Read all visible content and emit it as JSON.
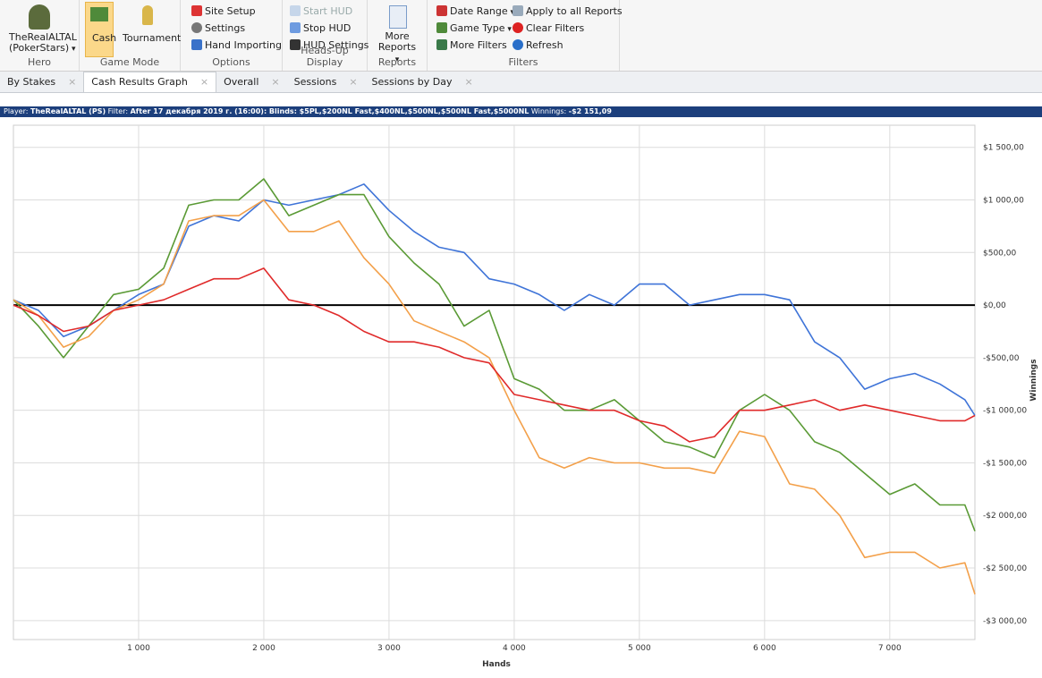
{
  "ribbon": {
    "hero": {
      "name": "TheRealALTAL",
      "site": "(PokerStars)",
      "group": "Hero"
    },
    "game_mode": {
      "buttons": [
        "Cash",
        "Tournament"
      ],
      "group": "Game Mode"
    },
    "options": {
      "buttons": [
        "Site Setup",
        "Settings",
        "Hand Importing"
      ],
      "group": "Options"
    },
    "hud": {
      "buttons": [
        "Start HUD",
        "Stop HUD",
        "HUD Settings"
      ],
      "group": "Heads-Up Display"
    },
    "reports": {
      "button": "More Reports",
      "group": "Reports"
    },
    "filters": {
      "buttons": [
        "Date Range",
        "Game Type",
        "More Filters",
        "Apply to all Reports",
        "Clear Filters",
        "Refresh"
      ],
      "group": "Filters"
    }
  },
  "tabs": [
    "By Stakes",
    "Cash Results Graph",
    "Overall",
    "Sessions",
    "Sessions by Day"
  ],
  "info_bar": {
    "player_label": "Player:",
    "player": "TheRealALTAL (PS)",
    "filter_label": "Filter:",
    "filter": "After 17 декабря 2019 г. (16:00): Blinds: $5PL,$200NL Fast,$400NL,$500NL,$500NL Fast,$5000NL",
    "winnings_label": "Winnings:",
    "winnings": "-$2 151,09"
  },
  "chart_data": {
    "type": "line",
    "x_label": "Hands",
    "y_label": "Winnings",
    "x": [
      0,
      200,
      400,
      600,
      800,
      1000,
      1200,
      1400,
      1600,
      1800,
      2000,
      2200,
      2400,
      2600,
      2800,
      3000,
      3200,
      3400,
      3600,
      3800,
      4000,
      4200,
      4400,
      4600,
      4800,
      5000,
      5200,
      5400,
      5600,
      5800,
      6000,
      6200,
      6400,
      6600,
      6800,
      7000,
      7200,
      7400,
      7600,
      7680
    ],
    "series": [
      {
        "color": "#3f74d8",
        "values": [
          50,
          -50,
          -300,
          -200,
          -50,
          100,
          200,
          750,
          850,
          800,
          1000,
          950,
          1000,
          1050,
          1150,
          900,
          700,
          550,
          500,
          250,
          200,
          100,
          -50,
          100,
          0,
          200,
          200,
          0,
          50,
          100,
          100,
          50,
          -350,
          -500,
          -800,
          -700,
          -650,
          -750,
          -900,
          -1050
        ]
      },
      {
        "color": "#5a9a35",
        "values": [
          50,
          -200,
          -500,
          -200,
          100,
          150,
          350,
          950,
          1000,
          1000,
          1200,
          850,
          950,
          1050,
          1050,
          650,
          400,
          200,
          -200,
          -50,
          -700,
          -800,
          -1000,
          -1000,
          -900,
          -1100,
          -1300,
          -1350,
          -1450,
          -1000,
          -850,
          -1000,
          -1300,
          -1400,
          -1600,
          -1800,
          -1700,
          -1900,
          -1900,
          -2150
        ]
      },
      {
        "color": "#f3a04a",
        "values": [
          50,
          -100,
          -400,
          -300,
          -50,
          50,
          200,
          800,
          850,
          850,
          1000,
          700,
          700,
          800,
          450,
          200,
          -150,
          -250,
          -350,
          -500,
          -1000,
          -1450,
          -1550,
          -1450,
          -1500,
          -1500,
          -1550,
          -1550,
          -1600,
          -1200,
          -1250,
          -1700,
          -1750,
          -2000,
          -2400,
          -2350,
          -2350,
          -2500,
          -2450,
          -2750
        ]
      },
      {
        "color": "#e02a2a",
        "values": [
          0,
          -100,
          -250,
          -200,
          -50,
          0,
          50,
          150,
          250,
          250,
          350,
          50,
          0,
          -100,
          -250,
          -350,
          -350,
          -400,
          -500,
          -550,
          -850,
          -900,
          -950,
          -1000,
          -1000,
          -1100,
          -1150,
          -1300,
          -1250,
          -1000,
          -1000,
          -950,
          -900,
          -1000,
          -950,
          -1000,
          -1050,
          -1100,
          -1100,
          -1050
        ]
      }
    ],
    "xlim": [
      0,
      7680
    ],
    "ylim": [
      -3180,
      1710
    ],
    "xticks": [
      {
        "value": 1000,
        "label": "1 000"
      },
      {
        "value": 2000,
        "label": "2 000"
      },
      {
        "value": 3000,
        "label": "3 000"
      },
      {
        "value": 4000,
        "label": "4 000"
      },
      {
        "value": 5000,
        "label": "5 000"
      },
      {
        "value": 6000,
        "label": "6 000"
      },
      {
        "value": 7000,
        "label": "7 000"
      }
    ],
    "yticks": [
      {
        "value": 1500,
        "label": "$1 500,00"
      },
      {
        "value": 1000,
        "label": "$1 000,00"
      },
      {
        "value": 500,
        "label": "$500,00"
      },
      {
        "value": 0,
        "label": "$0,00"
      },
      {
        "value": -500,
        "label": "-$500,00"
      },
      {
        "value": -1000,
        "label": "-$1 000,00"
      },
      {
        "value": -1500,
        "label": "-$1 500,00"
      },
      {
        "value": -2000,
        "label": "-$2 000,00"
      },
      {
        "value": -2500,
        "label": "-$2 500,00"
      },
      {
        "value": -3000,
        "label": "-$3 000,00"
      }
    ],
    "grid": true
  }
}
